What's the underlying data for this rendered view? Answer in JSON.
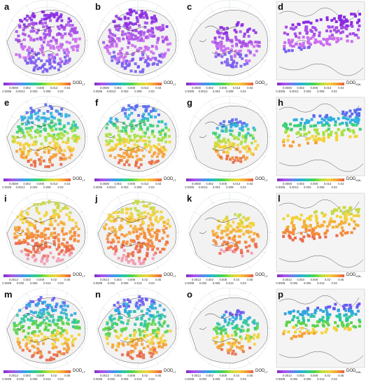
{
  "panels": [
    {
      "label": "a",
      "unit": "DOD",
      "sub": "LT",
      "ticks": [
        "0.0005",
        "0.0008",
        "0.0013",
        "0.002",
        "0.003",
        "0.005",
        "0.008",
        "0.013",
        "0.02",
        "0.03"
      ],
      "style": "purple"
    },
    {
      "label": "b",
      "unit": "DOD",
      "sub": "LT",
      "ticks": [
        "0.0005",
        "0.0008",
        "0.0013",
        "0.002",
        "0.003",
        "0.005",
        "0.008",
        "0.013",
        "0.02",
        "0.03"
      ],
      "style": "purple"
    },
    {
      "label": "c",
      "unit": "DOD",
      "sub": "LT",
      "ticks": [
        "0.0005",
        "0.0008",
        "0.0013",
        "0.002",
        "0.003",
        "0.005",
        "0.008",
        "0.013",
        "0.02",
        "0.03"
      ],
      "style": "purple-small"
    },
    {
      "label": "d",
      "unit": "DOD",
      "sub": "KML",
      "ticks": [
        "0.0005",
        "0.0008",
        "0.0013",
        "0.002",
        "0.003",
        "0.005",
        "0.008",
        "0.013",
        "0.02",
        "0.03"
      ],
      "style": "purple-strip"
    },
    {
      "label": "e",
      "unit": "DOD",
      "sub": "LT",
      "ticks": [
        "0.0005",
        "0.0008",
        "0.0013",
        "0.002",
        "0.003",
        "0.005",
        "0.008",
        "0.013",
        "0.02",
        "0.03"
      ],
      "style": "rainbow"
    },
    {
      "label": "f",
      "unit": "DOD",
      "sub": "LT",
      "ticks": [
        "0.0005",
        "0.0008",
        "0.0013",
        "0.002",
        "0.003",
        "0.005",
        "0.008",
        "0.013",
        "0.02",
        "0.03"
      ],
      "style": "rainbow"
    },
    {
      "label": "g",
      "unit": "DOD",
      "sub": "LT",
      "ticks": [
        "0.0005",
        "0.0008",
        "0.0013",
        "0.002",
        "0.003",
        "0.005",
        "0.008",
        "0.013",
        "0.02",
        "0.03"
      ],
      "style": "rainbow-small"
    },
    {
      "label": "h",
      "unit": "DOD",
      "sub": "KML",
      "ticks": [
        "0.0005",
        "0.0008",
        "0.0013",
        "0.002",
        "0.003",
        "0.005",
        "0.008",
        "0.013",
        "0.02",
        "0.03"
      ],
      "style": "rainbow-strip"
    },
    {
      "label": "i",
      "unit": "DOD",
      "sub": "LT",
      "ticks": [
        "0.0008",
        "0.0013",
        "0.002",
        "0.003",
        "0.005",
        "0.008",
        "0.013",
        "0.02",
        "0.03",
        "0.05"
      ],
      "style": "warm"
    },
    {
      "label": "j",
      "unit": "DOD",
      "sub": "LT",
      "ticks": [
        "0.0008",
        "0.0013",
        "0.002",
        "0.003",
        "0.005",
        "0.008",
        "0.013",
        "0.02",
        "0.03",
        "0.05"
      ],
      "style": "warm"
    },
    {
      "label": "k",
      "unit": "DOD",
      "sub": "LT",
      "ticks": [
        "0.0008",
        "0.0013",
        "0.002",
        "0.003",
        "0.005",
        "0.008",
        "0.013",
        "0.02",
        "0.03",
        "0.05"
      ],
      "style": "warm-small"
    },
    {
      "label": "l",
      "unit": "DOD",
      "sub": "KML",
      "ticks": [
        "0.0008",
        "0.0013",
        "0.002",
        "0.003",
        "0.005",
        "0.008",
        "0.013",
        "0.02",
        "0.03",
        "0.05"
      ],
      "style": "warm-strip"
    },
    {
      "label": "m",
      "unit": "DOD",
      "sub": "LT",
      "ticks": [
        "0.0008",
        "0.0013",
        "0.002",
        "0.003",
        "0.005",
        "0.008",
        "0.013",
        "0.02",
        "0.03",
        "0.05"
      ],
      "style": "mixed"
    },
    {
      "label": "n",
      "unit": "DOD",
      "sub": "LT",
      "ticks": [
        "0.0008",
        "0.0013",
        "0.002",
        "0.003",
        "0.005",
        "0.008",
        "0.013",
        "0.02",
        "0.03",
        "0.05"
      ],
      "style": "mixed"
    },
    {
      "label": "o",
      "unit": "DOD",
      "sub": "LT",
      "ticks": [
        "0.0008",
        "0.0013",
        "0.002",
        "0.003",
        "0.005",
        "0.008",
        "0.013",
        "0.02",
        "0.03",
        "0.05"
      ],
      "style": "mixed-small"
    },
    {
      "label": "p",
      "unit": "DOD",
      "sub": "KML",
      "ticks": [
        "0.0008",
        "0.0013",
        "0.002",
        "0.003",
        "0.005",
        "0.008",
        "0.013",
        "0.02",
        "0.03",
        "0.05"
      ],
      "style": "mixed-strip"
    }
  ]
}
